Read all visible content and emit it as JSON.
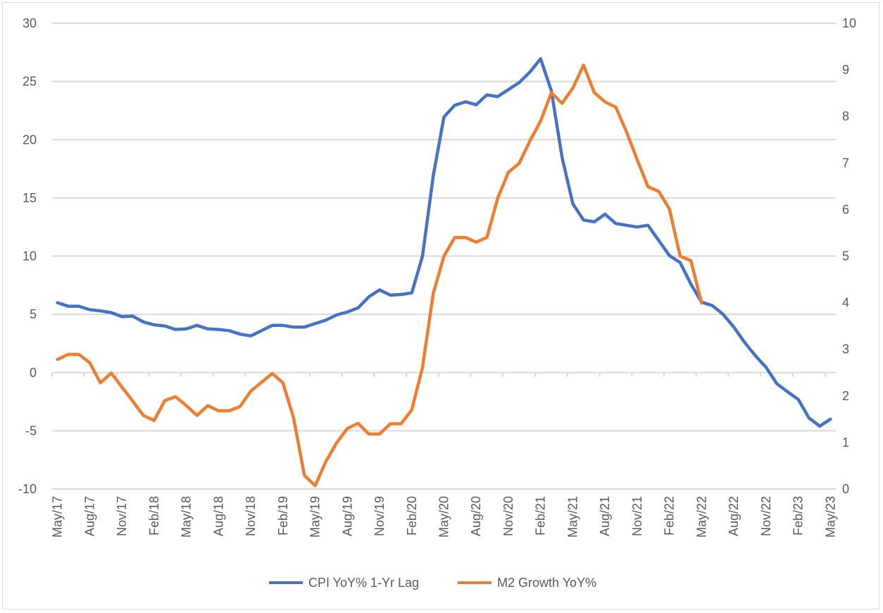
{
  "chart_data": {
    "type": "line",
    "title": "",
    "grid": true,
    "legend_position": "bottom",
    "x_tick_labels": [
      "May/17",
      "Aug/17",
      "Nov/17",
      "Feb/18",
      "May/18",
      "Aug/18",
      "Nov/18",
      "Feb/19",
      "May/19",
      "Aug/19",
      "Nov/19",
      "Feb/20",
      "May/20",
      "Aug/20",
      "Nov/20",
      "Feb/21",
      "May/21",
      "Aug/21",
      "Nov/21",
      "Feb/22",
      "May/22",
      "Aug/22",
      "Nov/22",
      "Feb/23",
      "May/23"
    ],
    "x_range": [
      "May/17",
      "May/23"
    ],
    "x_step": "monthly",
    "y_left": {
      "ylim": [
        -10,
        30
      ],
      "ticks": [
        -10,
        -5,
        0,
        5,
        10,
        15,
        20,
        25,
        30
      ]
    },
    "y_right": {
      "ylim": [
        0,
        10
      ],
      "ticks": [
        0,
        1,
        2,
        3,
        4,
        5,
        6,
        7,
        8,
        9,
        10
      ]
    },
    "series": [
      {
        "name": "CPI YoY% 1-Yr Lag",
        "axis": "left",
        "color": "#4472C4",
        "values": [
          6.0,
          5.7,
          5.7,
          5.4,
          5.3,
          5.15,
          4.8,
          4.85,
          4.35,
          4.1,
          4.0,
          3.7,
          3.75,
          4.05,
          3.75,
          3.7,
          3.6,
          3.3,
          3.15,
          3.6,
          4.05,
          4.05,
          3.9,
          3.9,
          4.2,
          4.5,
          4.95,
          5.2,
          5.55,
          6.5,
          7.1,
          6.65,
          6.7,
          6.85,
          10.0,
          16.9,
          21.95,
          22.95,
          23.25,
          23.0,
          23.85,
          23.7,
          24.3,
          24.9,
          25.8,
          26.95,
          24.2,
          18.5,
          14.5,
          13.1,
          12.95,
          13.6,
          12.8,
          12.65,
          12.5,
          12.65,
          11.35,
          10.05,
          9.45,
          7.6,
          6.05,
          5.75,
          5.0,
          3.9,
          2.6,
          1.45,
          0.45,
          -0.95,
          -1.65,
          -2.3,
          -3.9,
          -4.6,
          -4.0
        ]
      },
      {
        "name": "M2 Growth YoY%",
        "axis": "right",
        "color": "#ED7D31",
        "values": [
          2.78,
          2.89,
          2.89,
          2.71,
          2.28,
          2.49,
          2.19,
          1.89,
          1.58,
          1.47,
          1.9,
          1.98,
          1.79,
          1.58,
          1.79,
          1.68,
          1.68,
          1.77,
          2.1,
          2.29,
          2.48,
          2.28,
          1.52,
          0.29,
          0.07,
          0.59,
          0.99,
          1.3,
          1.41,
          1.18,
          1.18,
          1.4,
          1.4,
          1.7,
          2.61,
          4.2,
          5.0,
          5.4,
          5.4,
          5.3,
          5.4,
          6.24,
          6.8,
          6.99,
          7.47,
          7.9,
          8.51,
          8.28,
          8.61,
          9.1,
          8.51,
          8.31,
          8.2,
          7.67,
          7.07,
          6.49,
          6.39,
          6.01,
          5.0,
          4.9,
          3.99
        ]
      }
    ]
  }
}
